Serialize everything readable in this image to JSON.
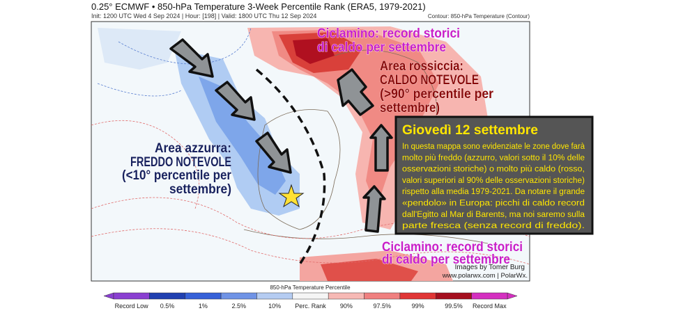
{
  "header": {
    "title": "0.25° ECMWF • 850-hPa Temperature 3-Week Percentile Rank (ERA5, 1979-2021)",
    "subtitle": "Init: 1200 UTC Wed 4 Sep 2024 | Hour: [198] | Valid: 1800 UTC Thu 12 Sep 2024",
    "contour_note": "Contour: 850-hPa Temperature (Contour)"
  },
  "annotations": [
    {
      "lines": [
        "Ciclamino: record storici",
        "di caldo per settembre"
      ]
    },
    {
      "lines": [
        "Area rossiccia:",
        "CALDO NOTEVOLE",
        "(>90° percentile per",
        "settembre)"
      ]
    },
    {
      "lines": [
        "Area azzurra:",
        "FREDDO NOTEVOLE",
        "(<10° percentile per",
        "settembre)"
      ]
    },
    {
      "lines": [
        "Ciclamino: record storici",
        "di caldo per settembre"
      ]
    }
  ],
  "info_box": {
    "title": "Giovedì 12 settembre",
    "lines": [
      "In questa mappa sono evidenziate le zone dove farà",
      "molto più freddo (azzurro, valori sotto il 10% delle",
      "osservazioni storiche) o molto più caldo (rosso,",
      "valori superiori al 90% delle osservazioni storiche)",
      "rispetto alla media 1979-2021. Da notare il grande",
      "«pendolo» in Europa: picchi di caldo record",
      "dall'Egitto al Mar di Barents, ma noi saremo sulla",
      "parte fresca (senza record di freddo)."
    ]
  },
  "credits": [
    "Images by Tomer Burg",
    "www.polarwx.com | PolarWx."
  ],
  "colorbar": {
    "title": "850-hPa Temperature Percentile",
    "labels": [
      "Record Low",
      "0.5%",
      "1%",
      "2.5%",
      "10%",
      "Perc. Rank",
      "90%",
      "97.5%",
      "99%",
      "99.5%",
      "Record Max"
    ]
  }
}
